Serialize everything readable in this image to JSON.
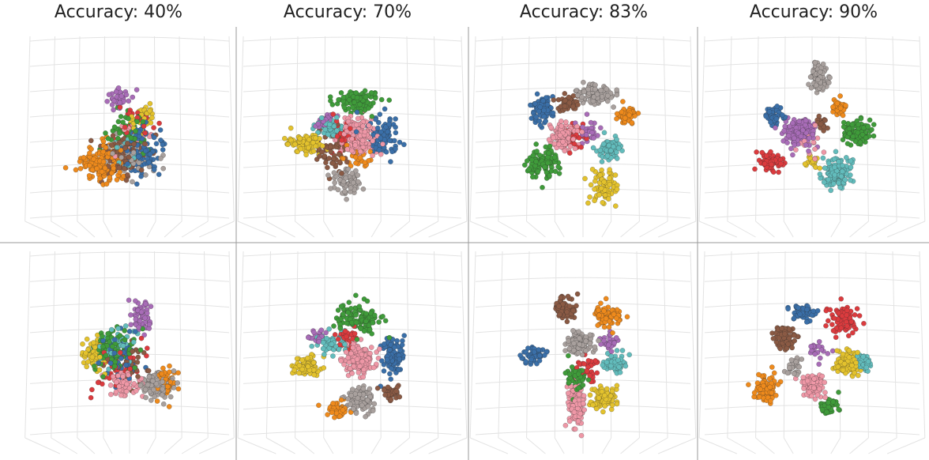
{
  "figure": {
    "columns": [
      {
        "title": "Accuracy: 40%"
      },
      {
        "title": "Accuracy: 70%"
      },
      {
        "title": "Accuracy: 83%"
      },
      {
        "title": "Accuracy: 90%"
      }
    ]
  },
  "palette": {
    "blue": "#3a6fa8",
    "orange": "#ee8a1c",
    "green": "#3f9b3a",
    "red": "#db3b3e",
    "purple": "#a86cb7",
    "brown": "#8a5a44",
    "pink": "#ee97a6",
    "gray": "#a8a09d",
    "olive": "#e3c22d",
    "cyan": "#62bcbc",
    "grid": "#e3e3e3",
    "divider": "#9a9a9a"
  },
  "chart_data": [
    {
      "type": "scatter",
      "view": "3d",
      "row": "top",
      "col": 0,
      "title": "Accuracy: 40%",
      "accuracy": 40,
      "grid": true,
      "clusters": [
        {
          "color": "orange",
          "cx": -0.34,
          "cy": 0.32,
          "rx": 0.32,
          "ry": 0.26,
          "n": 170
        },
        {
          "color": "blue",
          "cx": 0.22,
          "cy": 0.12,
          "rx": 0.3,
          "ry": 0.34,
          "n": 130
        },
        {
          "color": "brown",
          "cx": -0.05,
          "cy": 0.18,
          "rx": 0.34,
          "ry": 0.3,
          "n": 110
        },
        {
          "color": "gray",
          "cx": 0.05,
          "cy": 0.22,
          "rx": 0.38,
          "ry": 0.3,
          "n": 60
        },
        {
          "color": "green",
          "cx": 0.05,
          "cy": -0.08,
          "rx": 0.32,
          "ry": 0.34,
          "n": 60
        },
        {
          "color": "purple",
          "cx": -0.12,
          "cy": -0.52,
          "rx": 0.2,
          "ry": 0.14,
          "n": 40
        },
        {
          "color": "olive",
          "cx": 0.25,
          "cy": -0.3,
          "rx": 0.2,
          "ry": 0.18,
          "n": 35
        },
        {
          "color": "red",
          "cx": 0.1,
          "cy": -0.2,
          "rx": 0.3,
          "ry": 0.3,
          "n": 30
        },
        {
          "color": "pink",
          "cx": 0.1,
          "cy": 0.0,
          "rx": 0.32,
          "ry": 0.32,
          "n": 30
        },
        {
          "color": "cyan",
          "cx": 0.05,
          "cy": 0.1,
          "rx": 0.32,
          "ry": 0.32,
          "n": 25
        }
      ]
    },
    {
      "type": "scatter",
      "view": "3d",
      "row": "top",
      "col": 1,
      "title": "Accuracy: 70%",
      "accuracy": 70,
      "grid": true,
      "clusters": [
        {
          "color": "olive",
          "cx": -0.55,
          "cy": 0.05,
          "rx": 0.24,
          "ry": 0.15,
          "n": 80
        },
        {
          "color": "blue",
          "cx": 0.42,
          "cy": -0.05,
          "rx": 0.22,
          "ry": 0.3,
          "n": 100
        },
        {
          "color": "green",
          "cx": 0.1,
          "cy": -0.5,
          "rx": 0.34,
          "ry": 0.16,
          "n": 110
        },
        {
          "color": "gray",
          "cx": -0.02,
          "cy": 0.55,
          "rx": 0.18,
          "ry": 0.2,
          "n": 80
        },
        {
          "color": "brown",
          "cx": -0.2,
          "cy": 0.15,
          "rx": 0.25,
          "ry": 0.25,
          "n": 60
        },
        {
          "color": "cyan",
          "cx": -0.28,
          "cy": -0.15,
          "rx": 0.2,
          "ry": 0.15,
          "n": 50
        },
        {
          "color": "purple",
          "cx": -0.32,
          "cy": -0.25,
          "rx": 0.15,
          "ry": 0.1,
          "n": 30
        },
        {
          "color": "red",
          "cx": -0.1,
          "cy": -0.05,
          "rx": 0.2,
          "ry": 0.2,
          "n": 30
        },
        {
          "color": "orange",
          "cx": 0.1,
          "cy": 0.2,
          "rx": 0.2,
          "ry": 0.2,
          "n": 30
        },
        {
          "color": "pink",
          "cx": 0.1,
          "cy": -0.05,
          "rx": 0.25,
          "ry": 0.25,
          "n": 200
        }
      ]
    },
    {
      "type": "scatter",
      "view": "3d",
      "row": "top",
      "col": 2,
      "title": "Accuracy: 83%",
      "accuracy": 83,
      "grid": true,
      "clusters": [
        {
          "color": "gray",
          "cx": 0.2,
          "cy": -0.6,
          "rx": 0.28,
          "ry": 0.15,
          "n": 110
        },
        {
          "color": "blue",
          "cx": -0.48,
          "cy": -0.4,
          "rx": 0.15,
          "ry": 0.2,
          "n": 80
        },
        {
          "color": "brown",
          "cx": -0.15,
          "cy": -0.48,
          "rx": 0.16,
          "ry": 0.12,
          "n": 50
        },
        {
          "color": "orange",
          "cx": 0.62,
          "cy": -0.32,
          "rx": 0.14,
          "ry": 0.12,
          "n": 60
        },
        {
          "color": "green",
          "cx": -0.48,
          "cy": 0.3,
          "rx": 0.22,
          "ry": 0.22,
          "n": 110
        },
        {
          "color": "olive",
          "cx": 0.3,
          "cy": 0.6,
          "rx": 0.2,
          "ry": 0.25,
          "n": 80
        },
        {
          "color": "cyan",
          "cx": 0.38,
          "cy": 0.1,
          "rx": 0.16,
          "ry": 0.16,
          "n": 70
        },
        {
          "color": "red",
          "cx": -0.1,
          "cy": 0.0,
          "rx": 0.2,
          "ry": 0.2,
          "n": 30
        },
        {
          "color": "purple",
          "cx": 0.1,
          "cy": -0.1,
          "rx": 0.15,
          "ry": 0.15,
          "n": 30
        },
        {
          "color": "pink",
          "cx": -0.2,
          "cy": -0.05,
          "rx": 0.18,
          "ry": 0.18,
          "n": 150
        }
      ]
    },
    {
      "type": "scatter",
      "view": "3d",
      "row": "top",
      "col": 3,
      "title": "Accuracy: 90%",
      "accuracy": 90,
      "grid": true,
      "clusters": [
        {
          "color": "gray",
          "cx": 0.12,
          "cy": -0.82,
          "rx": 0.12,
          "ry": 0.22,
          "n": 100
        },
        {
          "color": "orange",
          "cx": 0.4,
          "cy": -0.42,
          "rx": 0.1,
          "ry": 0.1,
          "n": 40
        },
        {
          "color": "blue",
          "cx": -0.45,
          "cy": -0.32,
          "rx": 0.12,
          "ry": 0.12,
          "n": 60
        },
        {
          "color": "green",
          "cx": 0.62,
          "cy": -0.1,
          "rx": 0.2,
          "ry": 0.18,
          "n": 110
        },
        {
          "color": "red",
          "cx": -0.5,
          "cy": 0.28,
          "rx": 0.18,
          "ry": 0.14,
          "n": 80
        },
        {
          "color": "cyan",
          "cx": 0.36,
          "cy": 0.42,
          "rx": 0.2,
          "ry": 0.22,
          "n": 110
        },
        {
          "color": "olive",
          "cx": 0.05,
          "cy": 0.3,
          "rx": 0.1,
          "ry": 0.1,
          "n": 20
        },
        {
          "color": "purple",
          "cx": -0.12,
          "cy": -0.12,
          "rx": 0.22,
          "ry": 0.22,
          "n": 170
        },
        {
          "color": "pink",
          "cx": 0.0,
          "cy": 0.05,
          "rx": 0.2,
          "ry": 0.2,
          "n": 15
        },
        {
          "color": "brown",
          "cx": 0.15,
          "cy": -0.2,
          "rx": 0.1,
          "ry": 0.1,
          "n": 15
        }
      ]
    },
    {
      "type": "scatter",
      "view": "3d",
      "row": "bottom",
      "col": 0,
      "title": "",
      "accuracy": 40,
      "grid": true,
      "clusters": [
        {
          "color": "gray",
          "cx": 0.42,
          "cy": 0.35,
          "rx": 0.22,
          "ry": 0.2,
          "n": 100
        },
        {
          "color": "orange",
          "cx": 0.55,
          "cy": 0.3,
          "rx": 0.2,
          "ry": 0.22,
          "n": 60
        },
        {
          "color": "pink",
          "cx": -0.05,
          "cy": 0.3,
          "rx": 0.22,
          "ry": 0.22,
          "n": 80
        },
        {
          "color": "green",
          "cx": -0.2,
          "cy": -0.1,
          "rx": 0.32,
          "ry": 0.3,
          "n": 110
        },
        {
          "color": "olive",
          "cx": -0.45,
          "cy": -0.05,
          "rx": 0.18,
          "ry": 0.25,
          "n": 70
        },
        {
          "color": "purple",
          "cx": 0.2,
          "cy": -0.55,
          "rx": 0.15,
          "ry": 0.2,
          "n": 60
        },
        {
          "color": "blue",
          "cx": -0.1,
          "cy": 0.0,
          "rx": 0.35,
          "ry": 0.35,
          "n": 50
        },
        {
          "color": "red",
          "cx": -0.1,
          "cy": 0.1,
          "rx": 0.35,
          "ry": 0.35,
          "n": 50
        },
        {
          "color": "cyan",
          "cx": -0.2,
          "cy": -0.2,
          "rx": 0.3,
          "ry": 0.3,
          "n": 40
        },
        {
          "color": "brown",
          "cx": 0.0,
          "cy": 0.1,
          "rx": 0.3,
          "ry": 0.3,
          "n": 40
        }
      ]
    },
    {
      "type": "scatter",
      "view": "3d",
      "row": "bottom",
      "col": 1,
      "title": "",
      "accuracy": 70,
      "grid": true,
      "clusters": [
        {
          "color": "olive",
          "cx": -0.55,
          "cy": 0.1,
          "rx": 0.2,
          "ry": 0.15,
          "n": 80
        },
        {
          "color": "blue",
          "cx": 0.55,
          "cy": -0.05,
          "rx": 0.15,
          "ry": 0.25,
          "n": 90
        },
        {
          "color": "green",
          "cx": 0.1,
          "cy": -0.5,
          "rx": 0.35,
          "ry": 0.2,
          "n": 120
        },
        {
          "color": "gray",
          "cx": 0.15,
          "cy": 0.55,
          "rx": 0.2,
          "ry": 0.2,
          "n": 90
        },
        {
          "color": "orange",
          "cx": -0.15,
          "cy": 0.65,
          "rx": 0.15,
          "ry": 0.12,
          "n": 50
        },
        {
          "color": "brown",
          "cx": 0.55,
          "cy": 0.45,
          "rx": 0.12,
          "ry": 0.1,
          "n": 40
        },
        {
          "color": "cyan",
          "cx": -0.25,
          "cy": -0.2,
          "rx": 0.2,
          "ry": 0.15,
          "n": 60
        },
        {
          "color": "purple",
          "cx": -0.4,
          "cy": -0.3,
          "rx": 0.12,
          "ry": 0.1,
          "n": 25
        },
        {
          "color": "red",
          "cx": -0.05,
          "cy": -0.25,
          "rx": 0.2,
          "ry": 0.2,
          "n": 30
        },
        {
          "color": "pink",
          "cx": 0.1,
          "cy": 0.02,
          "rx": 0.2,
          "ry": 0.22,
          "n": 180
        }
      ]
    },
    {
      "type": "scatter",
      "view": "3d",
      "row": "bottom",
      "col": 2,
      "title": "",
      "accuracy": 83,
      "grid": true,
      "clusters": [
        {
          "color": "brown",
          "cx": -0.2,
          "cy": -0.65,
          "rx": 0.15,
          "ry": 0.15,
          "n": 90
        },
        {
          "color": "orange",
          "cx": 0.35,
          "cy": -0.55,
          "rx": 0.18,
          "ry": 0.12,
          "n": 80
        },
        {
          "color": "blue",
          "cx": -0.6,
          "cy": -0.05,
          "rx": 0.15,
          "ry": 0.12,
          "n": 70
        },
        {
          "color": "gray",
          "cx": 0.0,
          "cy": -0.2,
          "rx": 0.18,
          "ry": 0.15,
          "n": 110
        },
        {
          "color": "purple",
          "cx": 0.38,
          "cy": -0.2,
          "rx": 0.12,
          "ry": 0.12,
          "n": 30
        },
        {
          "color": "cyan",
          "cx": 0.45,
          "cy": 0.05,
          "rx": 0.15,
          "ry": 0.15,
          "n": 60
        },
        {
          "color": "green",
          "cx": -0.05,
          "cy": 0.25,
          "rx": 0.15,
          "ry": 0.2,
          "n": 60
        },
        {
          "color": "olive",
          "cx": 0.3,
          "cy": 0.5,
          "rx": 0.18,
          "ry": 0.2,
          "n": 80
        },
        {
          "color": "red",
          "cx": 0.1,
          "cy": 0.1,
          "rx": 0.2,
          "ry": 0.2,
          "n": 30
        },
        {
          "color": "pink",
          "cx": -0.05,
          "cy": 0.6,
          "rx": 0.12,
          "ry": 0.28,
          "n": 130
        }
      ]
    },
    {
      "type": "scatter",
      "view": "3d",
      "row": "bottom",
      "col": 3,
      "title": "",
      "accuracy": 90,
      "grid": true,
      "clusters": [
        {
          "color": "blue",
          "cx": -0.05,
          "cy": -0.6,
          "rx": 0.18,
          "ry": 0.12,
          "n": 60
        },
        {
          "color": "red",
          "cx": 0.45,
          "cy": -0.5,
          "rx": 0.2,
          "ry": 0.2,
          "n": 90
        },
        {
          "color": "brown",
          "cx": -0.32,
          "cy": -0.28,
          "rx": 0.15,
          "ry": 0.15,
          "n": 90
        },
        {
          "color": "olive",
          "cx": 0.5,
          "cy": 0.05,
          "rx": 0.2,
          "ry": 0.18,
          "n": 100
        },
        {
          "color": "cyan",
          "cx": 0.72,
          "cy": 0.05,
          "rx": 0.1,
          "ry": 0.12,
          "n": 40
        },
        {
          "color": "orange",
          "cx": -0.55,
          "cy": 0.4,
          "rx": 0.16,
          "ry": 0.2,
          "n": 90
        },
        {
          "color": "pink",
          "cx": 0.05,
          "cy": 0.35,
          "rx": 0.15,
          "ry": 0.18,
          "n": 130
        },
        {
          "color": "green",
          "cx": 0.25,
          "cy": 0.62,
          "rx": 0.12,
          "ry": 0.12,
          "n": 60
        },
        {
          "color": "gray",
          "cx": -0.2,
          "cy": 0.1,
          "rx": 0.12,
          "ry": 0.12,
          "n": 30
        },
        {
          "color": "purple",
          "cx": 0.1,
          "cy": -0.1,
          "rx": 0.15,
          "ry": 0.15,
          "n": 20
        }
      ]
    }
  ]
}
